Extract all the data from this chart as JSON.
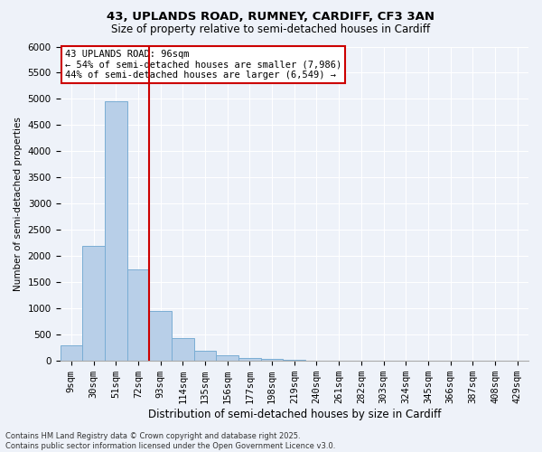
{
  "title_line1": "43, UPLANDS ROAD, RUMNEY, CARDIFF, CF3 3AN",
  "title_line2": "Size of property relative to semi-detached houses in Cardiff",
  "xlabel": "Distribution of semi-detached houses by size in Cardiff",
  "ylabel": "Number of semi-detached properties",
  "categories": [
    "9sqm",
    "30sqm",
    "51sqm",
    "72sqm",
    "93sqm",
    "114sqm",
    "135sqm",
    "156sqm",
    "177sqm",
    "198sqm",
    "219sqm",
    "240sqm",
    "261sqm",
    "282sqm",
    "303sqm",
    "324sqm",
    "345sqm",
    "366sqm",
    "387sqm",
    "408sqm",
    "429sqm"
  ],
  "bar_heights": [
    300,
    2200,
    4950,
    1750,
    960,
    430,
    200,
    110,
    60,
    40,
    25,
    10,
    5,
    0,
    0,
    0,
    0,
    0,
    0,
    0,
    0
  ],
  "bar_color": "#b8cfe8",
  "bar_edge_color": "#7aadd4",
  "vline_color": "#cc0000",
  "vline_x": 3.5,
  "annotation_title": "43 UPLANDS ROAD: 96sqm",
  "annotation_line2": "← 54% of semi-detached houses are smaller (7,986)",
  "annotation_line3": "44% of semi-detached houses are larger (6,549) →",
  "annotation_box_color": "#ffffff",
  "annotation_border_color": "#cc0000",
  "ylim": [
    0,
    6000
  ],
  "yticks": [
    0,
    500,
    1000,
    1500,
    2000,
    2500,
    3000,
    3500,
    4000,
    4500,
    5000,
    5500,
    6000
  ],
  "footer_line1": "Contains HM Land Registry data © Crown copyright and database right 2025.",
  "footer_line2": "Contains public sector information licensed under the Open Government Licence v3.0.",
  "bg_color": "#eef2f9",
  "grid_color": "#ffffff",
  "title_fontsize": 9.5,
  "subtitle_fontsize": 8.5,
  "ylabel_fontsize": 7.5,
  "xlabel_fontsize": 8.5,
  "tick_fontsize": 7.5,
  "annotation_fontsize": 7.5,
  "footer_fontsize": 6.0
}
